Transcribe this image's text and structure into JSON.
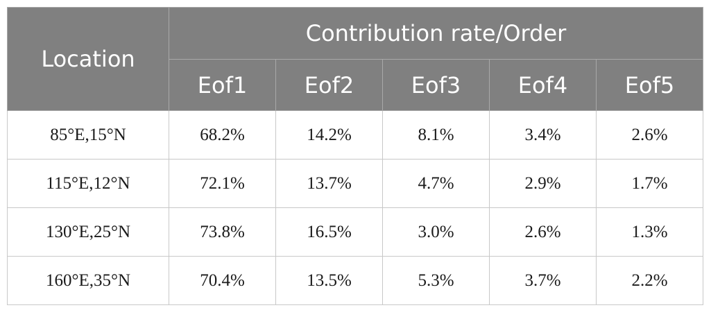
{
  "table": {
    "header": {
      "location_label": "Location",
      "group_label": "Contribution rate/Order",
      "columns": [
        "Eof1",
        "Eof2",
        "Eof3",
        "Eof4",
        "Eof5"
      ]
    },
    "rows": [
      {
        "location": "85°E,15°N",
        "values": [
          "68.2%",
          "14.2%",
          "8.1%",
          "3.4%",
          "2.6%"
        ]
      },
      {
        "location": "115°E,12°N",
        "values": [
          "72.1%",
          "13.7%",
          "4.7%",
          "2.9%",
          "1.7%"
        ]
      },
      {
        "location": "130°E,25°N",
        "values": [
          "73.8%",
          "16.5%",
          "3.0%",
          "2.6%",
          "1.3%"
        ]
      },
      {
        "location": "160°E,35°N",
        "values": [
          "70.4%",
          "13.5%",
          "5.3%",
          "3.7%",
          "2.2%"
        ]
      }
    ]
  }
}
